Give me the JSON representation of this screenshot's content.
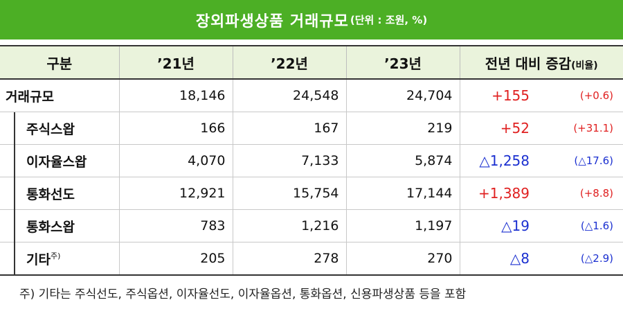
{
  "title": {
    "main": "장외파생상품 거래규모",
    "unit": "(단위 : 조원, %)"
  },
  "table": {
    "headers": [
      "구분",
      "’21년",
      "’22년",
      "’23년",
      "전년 대비 증감",
      "(비율)"
    ],
    "rows": [
      {
        "category": "거래규모",
        "y21": "18,146",
        "y22": "24,548",
        "y23": "24,704",
        "change": "+155",
        "ratio": "(+0.6)"
      },
      {
        "category": "주식스왑",
        "y21": "166",
        "y22": "167",
        "y23": "219",
        "change": "+52",
        "ratio": "(+31.1)"
      },
      {
        "category": "이자율스왑",
        "y21": "4,070",
        "y22": "7,133",
        "y23": "5,874",
        "change": "△1,258",
        "ratio": "(△17.6)"
      },
      {
        "category": "통화선도",
        "y21": "12,921",
        "y22": "15,754",
        "y23": "17,144",
        "change": "+1,389",
        "ratio": "(+8.8)"
      },
      {
        "category": "통화스왑",
        "y21": "783",
        "y22": "1,216",
        "y23": "1,197",
        "change": "△19",
        "ratio": "(△1.6)"
      },
      {
        "category": "기타",
        "note_mark": "주)",
        "y21": "205",
        "y22": "278",
        "y23": "270",
        "change": "△8",
        "ratio": "(△2.9)"
      }
    ]
  },
  "footnote": "주) 기타는 주식선도, 주식옵션, 이자율선도, 이자율옵션, 통화옵션, 신용파생상품 등을 포함",
  "colors": {
    "title_bg": "#4caf25",
    "header_bg": "#eaf3dc",
    "increase": "#e02020",
    "decrease": "#1a2fd0"
  }
}
